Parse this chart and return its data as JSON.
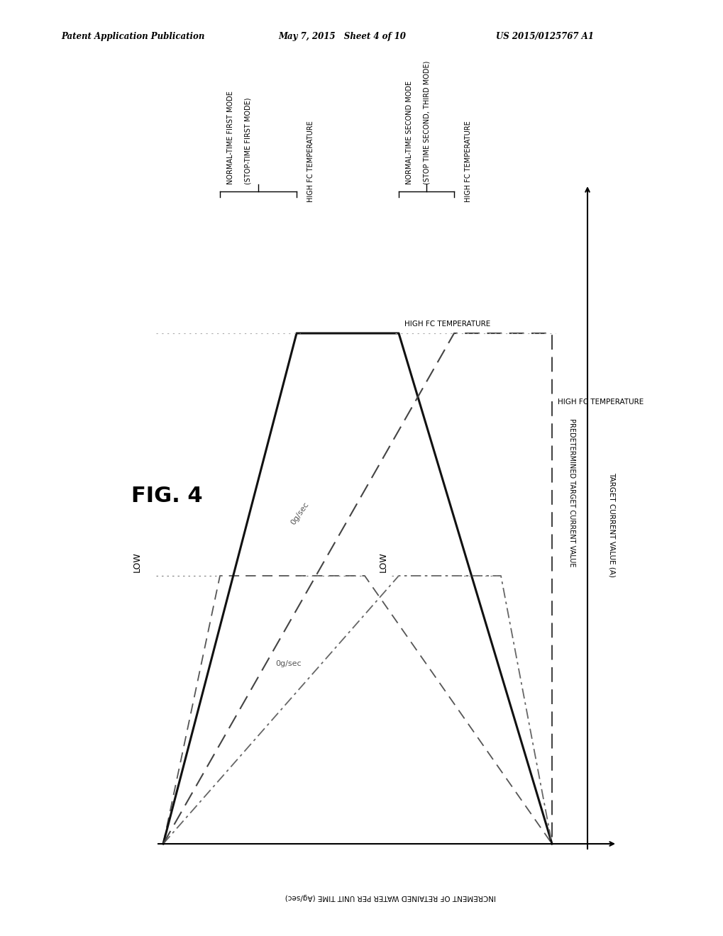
{
  "bg_color": "#ffffff",
  "header_left": "Patent Application Publication",
  "header_mid": "May 7, 2015   Sheet 4 of 10",
  "header_right": "US 2015/0125767 A1",
  "fig_label": "FIG. 4",
  "x_axis_label": "TARGET CURRENT VALUE (A)",
  "y_axis_label": "INCREMENT OF RETAINED WATER PER UNIT TIME (Ag/sec)",
  "x_ref_label": "PREDETERMINED TARGET CURRENT VALUE",
  "g1_annot1": "NORMAL-TIME FIRST MODE",
  "g1_annot2": "(STOP-TIME FIRST MODE)",
  "g1_high_label": "HIGH FC TEMPERATURE",
  "g1_low_label": "LOW",
  "g2_annot1": "NORMAL-TIME SECOND MODE",
  "g2_annot2": "(STOP TIME SECOND, THIRD MODE)",
  "g2_high_label": "HIGH FC TEMPERATURE",
  "g2_low_label": "LOW",
  "rate_label": "0g/sec",
  "note_color": "#333333",
  "line_solid_color": "#111111",
  "line_dash_color": "#444444",
  "line_dotdash_color": "#777777",
  "line_dot_color": "#aaaaaa"
}
